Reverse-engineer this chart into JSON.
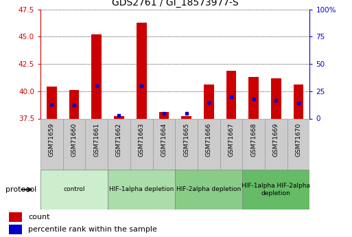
{
  "title": "GDS2761 / GI_18573977-S",
  "samples": [
    "GSM71659",
    "GSM71660",
    "GSM71661",
    "GSM71662",
    "GSM71663",
    "GSM71664",
    "GSM71665",
    "GSM71666",
    "GSM71667",
    "GSM71668",
    "GSM71669",
    "GSM71670"
  ],
  "count_values": [
    40.4,
    40.1,
    45.2,
    37.7,
    46.3,
    38.1,
    37.7,
    40.6,
    41.9,
    41.3,
    41.2,
    40.6
  ],
  "percentile_values": [
    13,
    12,
    30,
    3,
    30,
    5,
    5,
    15,
    20,
    18,
    17,
    14
  ],
  "y_min": 37.5,
  "y_max": 47.5,
  "y_ticks": [
    37.5,
    40.0,
    42.5,
    45.0,
    47.5
  ],
  "y_right_ticks": [
    0,
    25,
    50,
    75,
    100
  ],
  "y_right_labels": [
    "0",
    "25",
    "50",
    "75",
    "100%"
  ],
  "bar_color": "#cc0000",
  "dot_color": "#0000cc",
  "groups": [
    {
      "label": "control",
      "start": 0,
      "end": 2
    },
    {
      "label": "HIF-1alpha depletion",
      "start": 3,
      "end": 5
    },
    {
      "label": "HIF-2alpha depletion",
      "start": 6,
      "end": 8
    },
    {
      "label": "HIF-1alpha HIF-2alpha\ndepletion",
      "start": 9,
      "end": 11
    }
  ],
  "group_colors": [
    "#cceecc",
    "#aaddaa",
    "#88cc88",
    "#66bb66"
  ],
  "protocol_label": "protocol",
  "legend_count_label": "count",
  "legend_pct_label": "percentile rank within the sample",
  "sample_box_color": "#cccccc",
  "sample_box_edge": "#999999"
}
